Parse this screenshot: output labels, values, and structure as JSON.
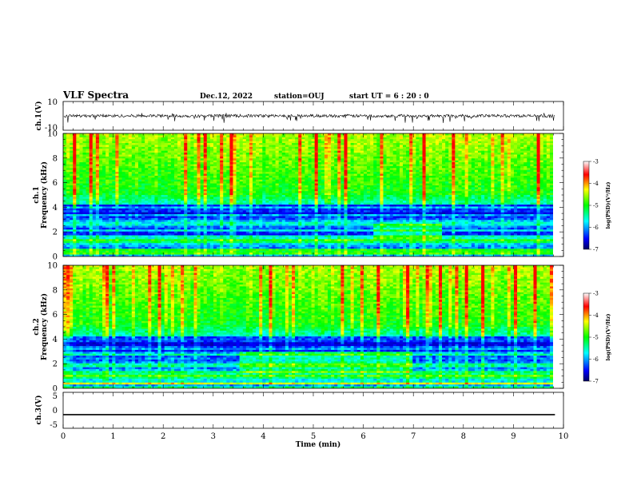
{
  "header": {
    "title": "VLF Spectra",
    "date": "Dec.12, 2022",
    "station": "station=OUJ",
    "start_ut": "start UT = 6 : 20 : 0"
  },
  "colors": {
    "colormap": [
      "#000080",
      "#0000ff",
      "#00ffff",
      "#00ff00",
      "#ffff00",
      "#ff0000",
      "#ffffff"
    ],
    "trace": "#000000",
    "frame": "#000000"
  },
  "chart_data": [
    {
      "type": "line",
      "name": "ch1-waveform",
      "ylabel": "ch.1(V)",
      "ylim": [
        -10,
        10
      ],
      "yticks": [
        "10",
        "-10"
      ],
      "baseline": 0,
      "description_values": {
        "typical_amplitude": 1.5,
        "spike_amplitude": 4
      }
    },
    {
      "type": "heatmap",
      "name": "ch1-spectrogram",
      "ylabel": "ch.1",
      "ylabel2": "Frequency (kHz)",
      "ylim": [
        0,
        10
      ],
      "yticks": [
        "0",
        "2",
        "4",
        "6",
        "8",
        "10"
      ],
      "xlim": [
        0,
        9.83
      ],
      "colorbar": {
        "label": "log(PSD)(V²/Hz)",
        "range": [
          -7,
          -3
        ],
        "ticks": [
          "-3",
          "-4",
          "-5",
          "-6",
          "-7"
        ]
      }
    },
    {
      "type": "heatmap",
      "name": "ch2-spectrogram",
      "ylabel": "ch.2",
      "ylabel2": "Frequency (kHz)",
      "ylim": [
        0,
        10
      ],
      "yticks": [
        "0",
        "2",
        "4",
        "6",
        "8",
        "10"
      ],
      "xlim": [
        0,
        9.83
      ],
      "colorbar": {
        "label": "log(PSD)(V²/Hz)",
        "range": [
          -7,
          -3
        ],
        "ticks": [
          "-3",
          "-4",
          "-5",
          "-6",
          "-7"
        ]
      }
    },
    {
      "type": "line",
      "name": "ch3-waveform",
      "ylabel": "ch.3(V)",
      "ylim": [
        -5,
        5
      ],
      "yticks": [
        "5",
        "0",
        "-5"
      ],
      "x": [
        0,
        9.83
      ],
      "y": [
        -1.2,
        -1.2
      ]
    }
  ],
  "xaxis": {
    "label": "Time (min)",
    "range": [
      0,
      10
    ],
    "ticks": [
      "0",
      "1",
      "2",
      "3",
      "4",
      "5",
      "6",
      "7",
      "8",
      "9",
      "10"
    ]
  }
}
